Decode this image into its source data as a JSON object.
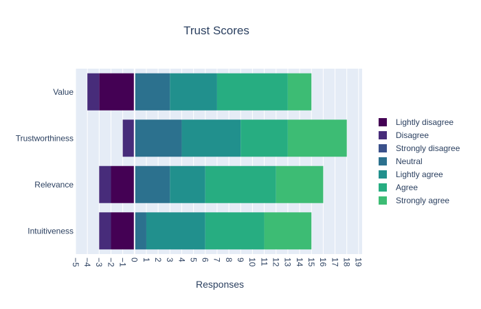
{
  "chart_data": {
    "type": "bar",
    "orientation": "horizontal",
    "barmode": "relative",
    "title": "Trust Scores",
    "xlabel": "Responses",
    "ylabel": "",
    "xlim": [
      -5,
      19.3
    ],
    "x_ticks": [
      -5,
      -4,
      -3,
      -2,
      -1,
      0,
      1,
      2,
      3,
      4,
      5,
      6,
      7,
      8,
      9,
      10,
      11,
      12,
      13,
      14,
      15,
      16,
      17,
      18,
      19
    ],
    "x_tick_labels": [
      "−5",
      "−4",
      "−3",
      "−2",
      "−1",
      "0",
      "1",
      "2",
      "3",
      "4",
      "5",
      "6",
      "7",
      "8",
      "9",
      "10",
      "11",
      "12",
      "13",
      "14",
      "15",
      "16",
      "17",
      "18",
      "19"
    ],
    "grid": true,
    "legend_position": "right",
    "categories": [
      "Intuitiveness",
      "Relevance",
      "Trustworthiness",
      "Value"
    ],
    "series": [
      {
        "name": "Lightly disagree",
        "color": "#440154",
        "values": [
          -2,
          -2,
          0,
          -3
        ]
      },
      {
        "name": "Disagree",
        "color": "#472c7a",
        "values": [
          -1,
          -1,
          -1,
          -1
        ]
      },
      {
        "name": "Strongly disagree",
        "color": "#3b518b",
        "values": [
          0,
          0,
          0,
          0
        ]
      },
      {
        "name": "Neutral",
        "color": "#2c718e",
        "values": [
          1,
          3,
          4,
          3
        ]
      },
      {
        "name": "Lightly agree",
        "color": "#21908d",
        "values": [
          5,
          3,
          5,
          4
        ]
      },
      {
        "name": "Agree",
        "color": "#27ad81",
        "values": [
          5,
          6,
          4,
          6
        ]
      },
      {
        "name": "Strongly agree",
        "color": "#3dbc74",
        "values": [
          4,
          4,
          5,
          2
        ]
      }
    ]
  }
}
